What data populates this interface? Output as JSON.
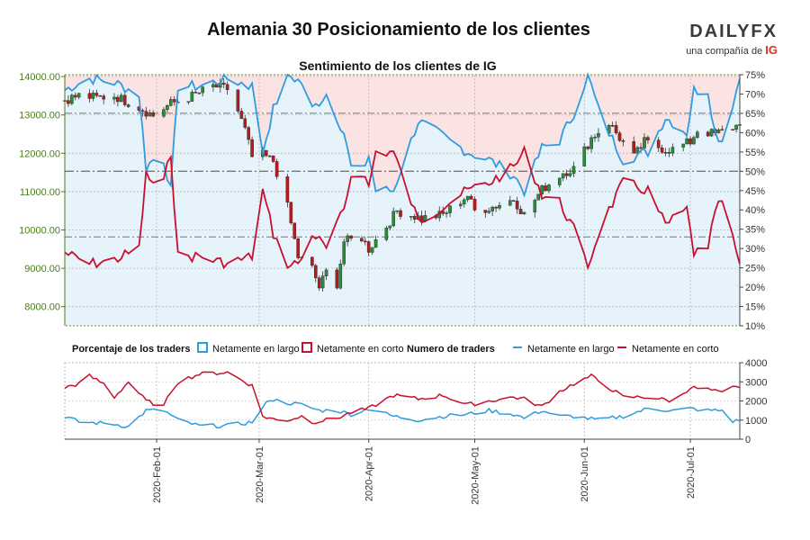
{
  "header": {
    "title": "Alemania 30 Posicionamiento de los clientes",
    "subtitle": "Sentimiento de los clientes de IG",
    "brand_name": "DAILYFX",
    "brand_tagline": "una compañía de",
    "brand_mark": "IG"
  },
  "legend": {
    "pct_title": "Porcentaje de los traders",
    "pct_long": "Netamente en largo",
    "pct_short": "Netamente en corto",
    "num_title": "Numero de traders",
    "num_long": "Netamente en largo",
    "num_short": "Netamente en corto"
  },
  "colors": {
    "long": "#2f9be0",
    "short": "#c8102e",
    "long_fill": "#e6f3fb",
    "short_fill": "#fbe3e3",
    "candle_up": "#2e8b3a",
    "candle_down": "#b71c1c",
    "price_axis": "#4a7a1e"
  },
  "chart_data": [
    {
      "type": "candlestick",
      "title": "Sentimiento de los clientes de IG",
      "y_left_ticks": [
        "8000.00",
        "9000.00",
        "10000.00",
        "11000.00",
        "12000.00",
        "13000.00",
        "14000.00"
      ],
      "y_left_range": [
        7500,
        14050
      ],
      "y_right_ticks": [
        "10%",
        "15%",
        "20%",
        "25%",
        "30%",
        "35%",
        "40%",
        "45%",
        "50%",
        "55%",
        "60%",
        "65%",
        "70%",
        "75%"
      ],
      "y_right_range": [
        10,
        75
      ],
      "x_range": [
        "2020-01-06",
        "2020-07-15"
      ],
      "reference_levels_pct": [
        65,
        50,
        33
      ],
      "long_pct_keypoints": [
        [
          "2020-01-06",
          71
        ],
        [
          "2020-01-08",
          72
        ],
        [
          "2020-01-13",
          74
        ],
        [
          "2020-01-20",
          73
        ],
        [
          "2020-01-27",
          70
        ],
        [
          "2020-01-29",
          51
        ],
        [
          "2020-01-31",
          53
        ],
        [
          "2020-02-03",
          53
        ],
        [
          "2020-02-05",
          45
        ],
        [
          "2020-02-07",
          72
        ],
        [
          "2020-02-13",
          72
        ],
        [
          "2020-02-21",
          74
        ],
        [
          "2020-02-28",
          72
        ],
        [
          "2020-03-02",
          55
        ],
        [
          "2020-03-05",
          66
        ],
        [
          "2020-03-09",
          75
        ],
        [
          "2020-03-13",
          73
        ],
        [
          "2020-03-16",
          66
        ],
        [
          "2020-03-20",
          70
        ],
        [
          "2020-03-25",
          60
        ],
        [
          "2020-03-27",
          51
        ],
        [
          "2020-03-30",
          50
        ],
        [
          "2020-04-01",
          54
        ],
        [
          "2020-04-03",
          45
        ],
        [
          "2020-04-08",
          45
        ],
        [
          "2020-04-15",
          63
        ],
        [
          "2020-04-22",
          59
        ],
        [
          "2020-04-29",
          55
        ],
        [
          "2020-05-05",
          53
        ],
        [
          "2020-05-12",
          49
        ],
        [
          "2020-05-15",
          45
        ],
        [
          "2020-05-20",
          56
        ],
        [
          "2020-05-25",
          58
        ],
        [
          "2020-05-29",
          65
        ],
        [
          "2020-06-02",
          75
        ],
        [
          "2020-06-05",
          66
        ],
        [
          "2020-06-08",
          60
        ],
        [
          "2020-06-12",
          53
        ],
        [
          "2020-06-19",
          55
        ],
        [
          "2020-06-24",
          64
        ],
        [
          "2020-06-30",
          60
        ],
        [
          "2020-07-02",
          71
        ],
        [
          "2020-07-06",
          71
        ],
        [
          "2020-07-08",
          60
        ],
        [
          "2020-07-10",
          58
        ],
        [
          "2020-07-15",
          74
        ]
      ],
      "ohlc_keypoints": [
        [
          "2020-01-06",
          13400
        ],
        [
          "2020-01-10",
          13500
        ],
        [
          "2020-01-15",
          13450
        ],
        [
          "2020-01-20",
          13500
        ],
        [
          "2020-01-27",
          13200
        ],
        [
          "2020-01-31",
          12980
        ],
        [
          "2020-02-05",
          13300
        ],
        [
          "2020-02-10",
          13450
        ],
        [
          "2020-02-17",
          13750
        ],
        [
          "2020-02-21",
          13680
        ],
        [
          "2020-02-24",
          13100
        ],
        [
          "2020-02-26",
          12600
        ],
        [
          "2020-02-28",
          11900
        ],
        [
          "2020-03-02",
          11950
        ],
        [
          "2020-03-05",
          11800
        ],
        [
          "2020-03-09",
          10600
        ],
        [
          "2020-03-12",
          9300
        ],
        [
          "2020-03-16",
          9000
        ],
        [
          "2020-03-18",
          8500
        ],
        [
          "2020-03-20",
          8900
        ],
        [
          "2020-03-23",
          8600
        ],
        [
          "2020-03-25",
          9700
        ],
        [
          "2020-03-30",
          9800
        ],
        [
          "2020-04-01",
          9500
        ],
        [
          "2020-04-06",
          10100
        ],
        [
          "2020-04-09",
          10500
        ],
        [
          "2020-04-16",
          10300
        ],
        [
          "2020-04-22",
          10400
        ],
        [
          "2020-04-29",
          10900
        ],
        [
          "2020-05-01",
          10500
        ],
        [
          "2020-05-06",
          10600
        ],
        [
          "2020-05-12",
          10800
        ],
        [
          "2020-05-15",
          10400
        ],
        [
          "2020-05-20",
          11050
        ],
        [
          "2020-05-26",
          11500
        ],
        [
          "2020-05-29",
          11600
        ],
        [
          "2020-06-03",
          12400
        ],
        [
          "2020-06-08",
          12800
        ],
        [
          "2020-06-11",
          12400
        ],
        [
          "2020-06-15",
          11900
        ],
        [
          "2020-06-18",
          12300
        ],
        [
          "2020-06-24",
          12100
        ],
        [
          "2020-06-26",
          12100
        ],
        [
          "2020-07-01",
          12300
        ],
        [
          "2020-07-03",
          12600
        ],
        [
          "2020-07-08",
          12500
        ],
        [
          "2020-07-15",
          12750
        ]
      ]
    },
    {
      "type": "line",
      "title": "Numero de traders",
      "y_right_ticks": [
        "0",
        "1000",
        "2000",
        "3000",
        "4000"
      ],
      "y_range": [
        0,
        4000
      ],
      "x_ticks": [
        "2020-Feb-01",
        "2020-Mar-01",
        "2020-Apr-01",
        "2020-May-01",
        "2020-Jun-01",
        "2020-Jul-01"
      ],
      "series": [
        {
          "name": "Netamente en largo",
          "keypoints": [
            [
              "2020-01-06",
              1200
            ],
            [
              "2020-01-10",
              900
            ],
            [
              "2020-01-20",
              800
            ],
            [
              "2020-01-24",
              650
            ],
            [
              "2020-01-29",
              1500
            ],
            [
              "2020-02-03",
              1500
            ],
            [
              "2020-02-07",
              1000
            ],
            [
              "2020-02-13",
              700
            ],
            [
              "2020-02-21",
              700
            ],
            [
              "2020-02-28",
              900
            ],
            [
              "2020-03-04",
              2100
            ],
            [
              "2020-03-09",
              1900
            ],
            [
              "2020-03-13",
              1800
            ],
            [
              "2020-03-18",
              1500
            ],
            [
              "2020-03-23",
              1500
            ],
            [
              "2020-03-27",
              1300
            ],
            [
              "2020-04-01",
              1600
            ],
            [
              "2020-04-08",
              1200
            ],
            [
              "2020-04-15",
              1000
            ],
            [
              "2020-04-22",
              1200
            ],
            [
              "2020-04-29",
              1300
            ],
            [
              "2020-05-05",
              1500
            ],
            [
              "2020-05-12",
              1300
            ],
            [
              "2020-05-15",
              1100
            ],
            [
              "2020-05-20",
              1500
            ],
            [
              "2020-05-25",
              1200
            ],
            [
              "2020-05-29",
              1200
            ],
            [
              "2020-06-05",
              1000
            ],
            [
              "2020-06-12",
              1200
            ],
            [
              "2020-06-19",
              1600
            ],
            [
              "2020-06-26",
              1500
            ],
            [
              "2020-07-01",
              1600
            ],
            [
              "2020-07-06",
              1500
            ],
            [
              "2020-07-10",
              1500
            ],
            [
              "2020-07-13",
              950
            ],
            [
              "2020-07-15",
              950
            ]
          ]
        },
        {
          "name": "Netamente en corto",
          "keypoints": [
            [
              "2020-01-06",
              2700
            ],
            [
              "2020-01-10",
              2900
            ],
            [
              "2020-01-13",
              3300
            ],
            [
              "2020-01-17",
              2900
            ],
            [
              "2020-01-20",
              2200
            ],
            [
              "2020-01-24",
              3000
            ],
            [
              "2020-01-29",
              2000
            ],
            [
              "2020-02-03",
              1700
            ],
            [
              "2020-02-05",
              2500
            ],
            [
              "2020-02-07",
              3000
            ],
            [
              "2020-02-13",
              3400
            ],
            [
              "2020-02-21",
              3500
            ],
            [
              "2020-02-28",
              2800
            ],
            [
              "2020-03-02",
              1200
            ],
            [
              "2020-03-06",
              1000
            ],
            [
              "2020-03-09",
              1000
            ],
            [
              "2020-03-13",
              1200
            ],
            [
              "2020-03-16",
              900
            ],
            [
              "2020-03-20",
              1000
            ],
            [
              "2020-03-23",
              1100
            ],
            [
              "2020-03-27",
              1400
            ],
            [
              "2020-04-01",
              1600
            ],
            [
              "2020-04-08",
              2300
            ],
            [
              "2020-04-15",
              2100
            ],
            [
              "2020-04-22",
              2300
            ],
            [
              "2020-04-29",
              1800
            ],
            [
              "2020-05-05",
              2000
            ],
            [
              "2020-05-12",
              2200
            ],
            [
              "2020-05-15",
              2100
            ],
            [
              "2020-05-20",
              1700
            ],
            [
              "2020-05-25",
              2500
            ],
            [
              "2020-05-29",
              2900
            ],
            [
              "2020-06-03",
              3300
            ],
            [
              "2020-06-08",
              2700
            ],
            [
              "2020-06-12",
              2200
            ],
            [
              "2020-06-19",
              2200
            ],
            [
              "2020-06-26",
              2000
            ],
            [
              "2020-07-01",
              2700
            ],
            [
              "2020-07-06",
              2600
            ],
            [
              "2020-07-10",
              2400
            ],
            [
              "2020-07-13",
              2700
            ],
            [
              "2020-07-15",
              2700
            ]
          ]
        }
      ]
    }
  ]
}
